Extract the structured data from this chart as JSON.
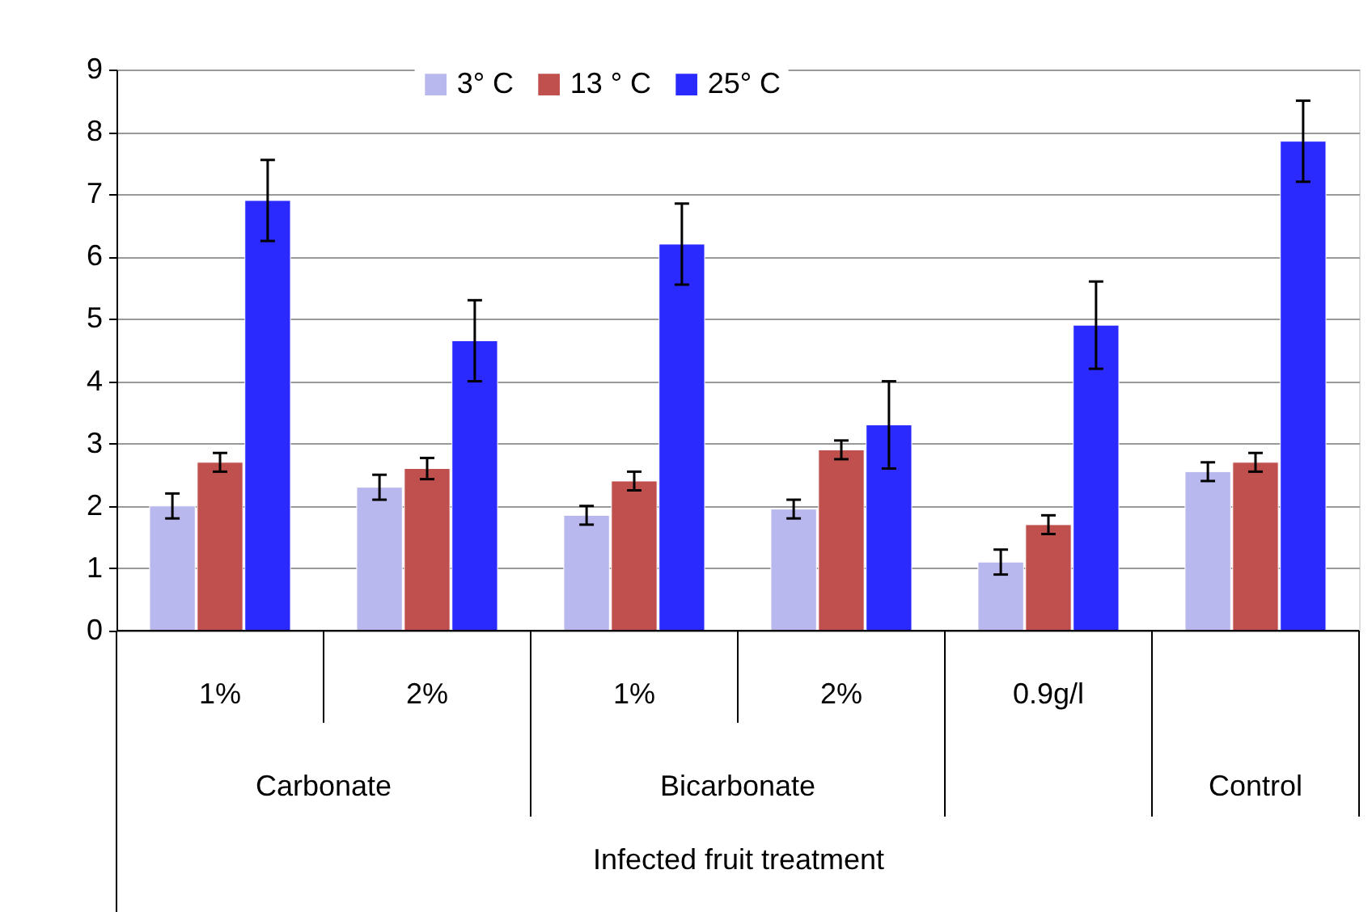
{
  "chart_data": {
    "type": "bar",
    "xlabel": "Infected fruit treatment",
    "categories": [
      "1%",
      "2%",
      "1%",
      "2%",
      "0.9g/l",
      null
    ],
    "annotations": [
      "Carbonate",
      "Bicarbonate",
      "Control"
    ],
    "series": [
      {
        "name": "3° C",
        "color": "#b8b8ee",
        "values": [
          2.0,
          2.3,
          1.85,
          1.95,
          1.1,
          2.55
        ],
        "errors": [
          0.2,
          0.2,
          0.15,
          0.15,
          0.2,
          0.15
        ]
      },
      {
        "name": "13 ° C",
        "color": "#c0504d",
        "values": [
          2.7,
          2.6,
          2.4,
          2.9,
          1.7,
          2.7
        ],
        "errors": [
          0.15,
          0.17,
          0.15,
          0.15,
          0.15,
          0.15
        ]
      },
      {
        "name": "25° C",
        "color": "#2a2aff",
        "values": [
          6.9,
          4.65,
          6.2,
          3.3,
          4.9,
          7.85
        ],
        "errors": [
          0.65,
          0.65,
          0.65,
          0.7,
          0.7,
          0.65
        ]
      }
    ],
    "ylim": [
      0,
      9
    ],
    "yticks": [
      0,
      1,
      2,
      3,
      4,
      5,
      6,
      7,
      8,
      9
    ],
    "grid": "y",
    "legend": "top"
  }
}
